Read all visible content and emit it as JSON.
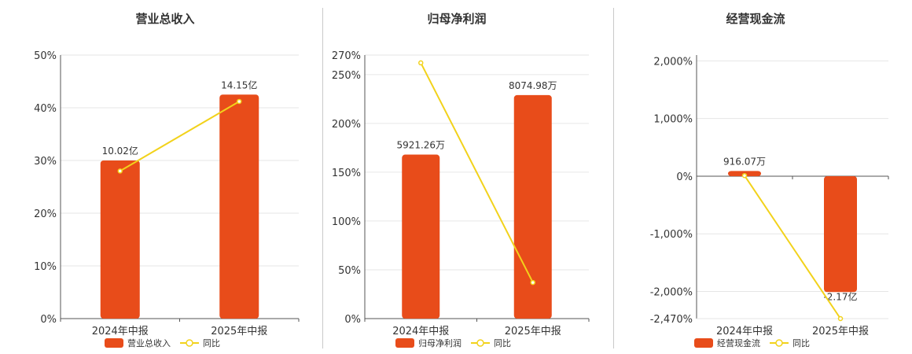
{
  "colors": {
    "bar": "#e84c1a",
    "line": "#f2d21b",
    "grid": "#e6e6e6",
    "axis": "#555555"
  },
  "chart_data": [
    {
      "type": "bar",
      "title": "营业总收入",
      "categories": [
        "2024年中报",
        "2025年中报"
      ],
      "series": [
        {
          "name": "营业总收入",
          "type": "bar",
          "values": [
            30,
            42.5
          ],
          "labels": [
            "10.02亿",
            "14.15亿"
          ]
        },
        {
          "name": "同比",
          "type": "line",
          "values": [
            28,
            41.2
          ]
        }
      ],
      "yticks": [
        "0%",
        "10%",
        "20%",
        "30%",
        "40%",
        "50%"
      ],
      "ytick_values": [
        0,
        10,
        20,
        30,
        40,
        50
      ],
      "ylim": [
        0,
        50
      ],
      "grid": true,
      "legend": "bottom-center"
    },
    {
      "type": "bar",
      "title": "归母净利润",
      "categories": [
        "2024年中报",
        "2025年中报"
      ],
      "series": [
        {
          "name": "归母净利润",
          "type": "bar",
          "values": [
            168,
            229
          ],
          "labels": [
            "5921.26万",
            "8074.98万"
          ]
        },
        {
          "name": "同比",
          "type": "line",
          "values": [
            262,
            37
          ]
        }
      ],
      "yticks": [
        "0%",
        "50%",
        "100%",
        "150%",
        "200%",
        "250%",
        "270%"
      ],
      "ytick_values": [
        0,
        50,
        100,
        150,
        200,
        250,
        270
      ],
      "ylim": [
        0,
        270
      ],
      "grid": true,
      "legend": "bottom-center"
    },
    {
      "type": "bar",
      "title": "经营现金流",
      "categories": [
        "2024年中报",
        "2025年中报"
      ],
      "series": [
        {
          "name": "经营现金流",
          "type": "bar",
          "values": [
            90,
            -2010
          ],
          "labels": [
            "916.07万",
            "-2.17亿"
          ]
        },
        {
          "name": "同比",
          "type": "line",
          "values": [
            10,
            -2470
          ]
        }
      ],
      "yticks": [
        "-2,470%",
        "-2,000%",
        "-1,000%",
        "0%",
        "1,000%",
        "2,000%"
      ],
      "ytick_values": [
        -2470,
        -2000,
        -1000,
        0,
        1000,
        2000
      ],
      "ylim": [
        -2470,
        2100
      ],
      "grid": true,
      "legend": "bottom-center"
    }
  ]
}
